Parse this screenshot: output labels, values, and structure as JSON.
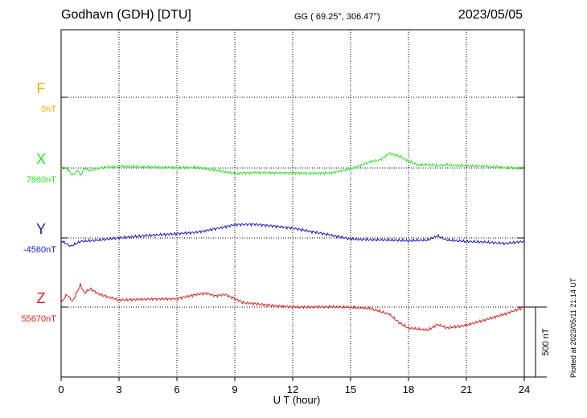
{
  "header": {
    "station": "Godhavn (GDH)  [DTU]",
    "coords": "GG ( 69.25°, 306.47°)",
    "date": "2023/05/05"
  },
  "footer": {
    "plotted": "Plotted at 2023/05/11 21:14 UT"
  },
  "chart_data": {
    "type": "line",
    "xlabel": "U T (hour)",
    "xlim": [
      0,
      24
    ],
    "xticks": [
      0,
      3,
      6,
      9,
      12,
      15,
      18,
      21,
      24
    ],
    "grid": true,
    "scale_bar": {
      "value_nT": 500,
      "label": "500 nT"
    },
    "series": [
      {
        "name": "F",
        "baseline_label": "0nT",
        "baseline_nT": 0,
        "color": "#f0b400",
        "x": [],
        "values": []
      },
      {
        "name": "X",
        "baseline_label": "7860nT",
        "baseline_nT": 7860,
        "color": "#22e622",
        "x": [
          0,
          0.3,
          0.6,
          0.9,
          1.0,
          1.2,
          1.5,
          2,
          3,
          4,
          5,
          6,
          7,
          8,
          9,
          10,
          11,
          12,
          13,
          14,
          15,
          15.5,
          16,
          16.5,
          17,
          17.5,
          18,
          18.5,
          19,
          19.5,
          20,
          20.5,
          21,
          22,
          23,
          24
        ],
        "values": [
          7860,
          7855,
          7810,
          7845,
          7805,
          7858,
          7840,
          7860,
          7872,
          7868,
          7865,
          7862,
          7864,
          7845,
          7820,
          7828,
          7826,
          7825,
          7822,
          7825,
          7855,
          7875,
          7905,
          7915,
          7965,
          7945,
          7910,
          7880,
          7885,
          7875,
          7882,
          7878,
          7875,
          7872,
          7862,
          7858
        ]
      },
      {
        "name": "Y",
        "baseline_label": "-4560nT",
        "baseline_nT": -4560,
        "color": "#1515cc",
        "x": [
          0,
          0.5,
          1,
          2,
          3,
          4,
          5,
          6,
          7,
          8,
          9,
          10,
          11,
          12,
          13,
          14,
          15,
          16,
          17,
          18,
          19,
          19.5,
          20,
          21,
          22,
          23,
          24
        ],
        "values": [
          -4580,
          -4620,
          -4585,
          -4575,
          -4560,
          -4548,
          -4538,
          -4530,
          -4520,
          -4495,
          -4465,
          -4462,
          -4475,
          -4490,
          -4515,
          -4540,
          -4568,
          -4573,
          -4575,
          -4580,
          -4575,
          -4545,
          -4575,
          -4585,
          -4590,
          -4600,
          -4585
        ]
      },
      {
        "name": "Z",
        "baseline_label": "55670nT",
        "baseline_nT": 55670,
        "color": "#e61a1a",
        "x": [
          0,
          0.3,
          0.6,
          1.0,
          1.2,
          1.5,
          2,
          2.5,
          3,
          4,
          5,
          6,
          7,
          7.5,
          8,
          8.5,
          9,
          9.5,
          10,
          11,
          12,
          13,
          14,
          15,
          16,
          17,
          17.5,
          18,
          19,
          19.5,
          20,
          21,
          22,
          23,
          24
        ],
        "values": [
          55700,
          55760,
          55710,
          55830,
          55770,
          55800,
          55760,
          55740,
          55720,
          55725,
          55728,
          55730,
          55760,
          55770,
          55750,
          55760,
          55730,
          55700,
          55695,
          55680,
          55670,
          55670,
          55672,
          55668,
          55660,
          55620,
          55560,
          55520,
          55505,
          55545,
          55520,
          55540,
          55580,
          55620,
          55670
        ]
      }
    ]
  }
}
